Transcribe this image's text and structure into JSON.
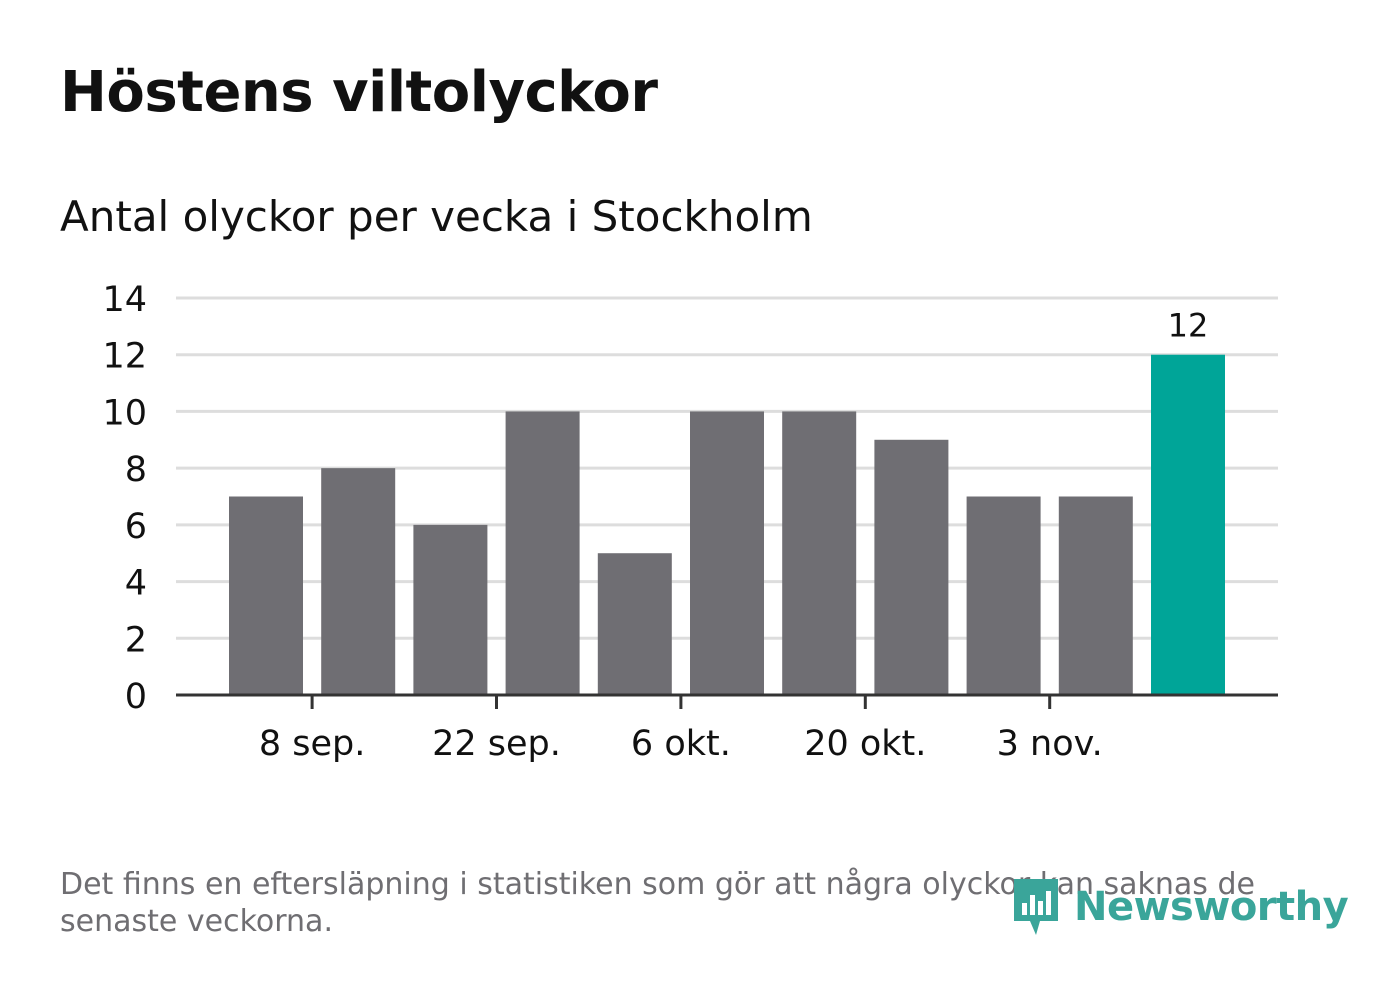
{
  "title": "Höstens viltolyckor",
  "subtitle": "Antal olyckor per vecka i Stockholm",
  "footnote": "Det finns en eftersläpning i statistiken som gör att några olyckor kan saknas de senaste veckorna.",
  "brand": {
    "name": "Newsworthy",
    "icon": "newsworthy-logo-icon"
  },
  "colors": {
    "bar": "#6f6e73",
    "highlight": "#00a598",
    "grid": "#dddddd",
    "axis": "#333333",
    "text": "#111111",
    "muted": "#6f6e72"
  },
  "chart_data": {
    "type": "bar",
    "title": "Antal olyckor per vecka i Stockholm",
    "xlabel": "",
    "ylabel": "",
    "ylim": [
      0,
      14
    ],
    "yticks": [
      0,
      2,
      4,
      6,
      8,
      10,
      12,
      14
    ],
    "values": [
      7,
      8,
      6,
      10,
      5,
      10,
      10,
      9,
      7,
      7,
      12
    ],
    "highlight_index": 10,
    "data_labels": [
      {
        "index": 10,
        "text": "12"
      }
    ],
    "xticks": [
      {
        "position": 1,
        "label": "8 sep."
      },
      {
        "position": 3,
        "label": "22 sep."
      },
      {
        "position": 5,
        "label": "6 okt."
      },
      {
        "position": 7,
        "label": "20 okt."
      },
      {
        "position": 9,
        "label": "3 nov."
      }
    ],
    "grid": true
  }
}
